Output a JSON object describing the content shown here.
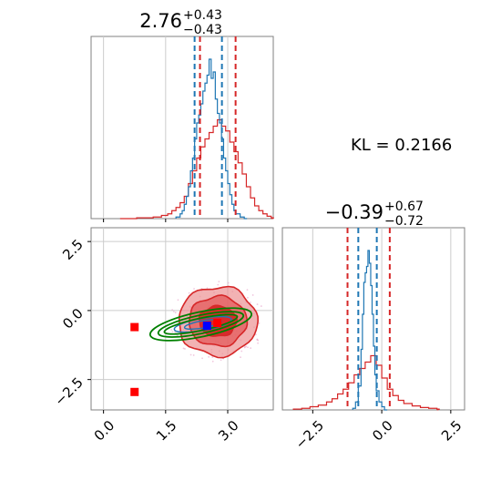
{
  "chart_data": {
    "type": "corner",
    "kl_text": "KL = 0.2166",
    "colors": {
      "posterior_a": "#1f77b4",
      "posterior_b": "#d62728",
      "contour_green": "#008000",
      "marker_red": "#ff0000",
      "marker_blue": "#0000ff",
      "grid": "#cccccc",
      "frame": "#808080"
    },
    "param1": {
      "title_value": "2.76",
      "title_upper": "+0.43",
      "title_lower": "−0.43",
      "range": [
        -0.3,
        4.1
      ],
      "ticks": [
        0.0,
        1.5,
        3.0
      ],
      "tick_labels": [
        "0.0",
        "1.5",
        "3.0"
      ],
      "quantiles_blue": [
        2.2,
        2.86
      ],
      "quantiles_red": [
        2.33,
        3.19
      ],
      "hist_blue": [
        [
          1.75,
          0.01
        ],
        [
          1.85,
          0.03
        ],
        [
          1.9,
          0.05
        ],
        [
          1.95,
          0.09
        ],
        [
          2.0,
          0.14
        ],
        [
          2.05,
          0.2
        ],
        [
          2.1,
          0.3
        ],
        [
          2.15,
          0.38
        ],
        [
          2.2,
          0.5
        ],
        [
          2.25,
          0.6
        ],
        [
          2.3,
          0.65
        ],
        [
          2.35,
          0.72
        ],
        [
          2.4,
          0.8
        ],
        [
          2.45,
          0.85
        ],
        [
          2.5,
          0.9
        ],
        [
          2.55,
          1.0
        ],
        [
          2.6,
          0.88
        ],
        [
          2.65,
          0.92
        ],
        [
          2.7,
          0.75
        ],
        [
          2.75,
          0.66
        ],
        [
          2.8,
          0.6
        ],
        [
          2.85,
          0.5
        ],
        [
          2.9,
          0.38
        ],
        [
          2.95,
          0.3
        ],
        [
          3.0,
          0.22
        ],
        [
          3.05,
          0.15
        ],
        [
          3.1,
          0.09
        ],
        [
          3.15,
          0.05
        ],
        [
          3.2,
          0.03
        ],
        [
          3.3,
          0.01
        ],
        [
          3.4,
          0.0
        ]
      ],
      "hist_red": [
        [
          0.4,
          0.0
        ],
        [
          0.8,
          0.005
        ],
        [
          1.2,
          0.01
        ],
        [
          1.4,
          0.02
        ],
        [
          1.55,
          0.03
        ],
        [
          1.65,
          0.05
        ],
        [
          1.75,
          0.07
        ],
        [
          1.85,
          0.1
        ],
        [
          1.95,
          0.14
        ],
        [
          2.05,
          0.22
        ],
        [
          2.15,
          0.3
        ],
        [
          2.25,
          0.38
        ],
        [
          2.35,
          0.45
        ],
        [
          2.45,
          0.5
        ],
        [
          2.55,
          0.54
        ],
        [
          2.65,
          0.58
        ],
        [
          2.75,
          0.62
        ],
        [
          2.85,
          0.58
        ],
        [
          2.95,
          0.55
        ],
        [
          3.05,
          0.48
        ],
        [
          3.15,
          0.42
        ],
        [
          3.25,
          0.35
        ],
        [
          3.35,
          0.28
        ],
        [
          3.45,
          0.2
        ],
        [
          3.55,
          0.13
        ],
        [
          3.65,
          0.08
        ],
        [
          3.75,
          0.05
        ],
        [
          3.85,
          0.03
        ],
        [
          3.95,
          0.015
        ],
        [
          4.05,
          0.005
        ]
      ]
    },
    "param2": {
      "title_value": "−0.39",
      "title_upper": "+0.67",
      "title_lower": "−0.72",
      "range": [
        -3.6,
        3.0
      ],
      "ticks": [
        -2.5,
        0.0,
        2.5
      ],
      "tick_labels": [
        "−2.5",
        "0.0",
        "2.5"
      ],
      "quantiles_blue": [
        -0.85,
        -0.18
      ],
      "quantiles_red": [
        -1.24,
        0.29
      ],
      "hist_blue": [
        [
          -1.05,
          0.01
        ],
        [
          -0.95,
          0.05
        ],
        [
          -0.85,
          0.15
        ],
        [
          -0.75,
          0.38
        ],
        [
          -0.7,
          0.6
        ],
        [
          -0.65,
          0.8
        ],
        [
          -0.6,
          0.86
        ],
        [
          -0.55,
          0.9
        ],
        [
          -0.5,
          1.0
        ],
        [
          -0.45,
          0.92
        ],
        [
          -0.4,
          0.78
        ],
        [
          -0.35,
          0.6
        ],
        [
          -0.3,
          0.4
        ],
        [
          -0.25,
          0.22
        ],
        [
          -0.2,
          0.12
        ],
        [
          -0.1,
          0.05
        ],
        [
          0.0,
          0.02
        ],
        [
          0.1,
          0.0
        ]
      ],
      "hist_red": [
        [
          -3.2,
          0.005
        ],
        [
          -2.9,
          0.01
        ],
        [
          -2.6,
          0.02
        ],
        [
          -2.3,
          0.03
        ],
        [
          -2.0,
          0.05
        ],
        [
          -1.8,
          0.07
        ],
        [
          -1.6,
          0.1
        ],
        [
          -1.4,
          0.13
        ],
        [
          -1.2,
          0.17
        ],
        [
          -1.0,
          0.22
        ],
        [
          -0.8,
          0.26
        ],
        [
          -0.6,
          0.3
        ],
        [
          -0.4,
          0.34
        ],
        [
          -0.2,
          0.28
        ],
        [
          0.0,
          0.2
        ],
        [
          0.2,
          0.13
        ],
        [
          0.4,
          0.09
        ],
        [
          0.6,
          0.06
        ],
        [
          0.8,
          0.04
        ],
        [
          1.1,
          0.025
        ],
        [
          1.4,
          0.015
        ],
        [
          1.7,
          0.01
        ],
        [
          2.0,
          0.005
        ]
      ]
    },
    "joint": {
      "xrange": [
        -0.3,
        4.1
      ],
      "yrange": [
        -3.6,
        3.0
      ],
      "ticks_x": [
        0.0,
        1.5,
        3.0
      ],
      "ticks_y": [
        -2.5,
        0.0,
        2.5
      ],
      "x_tick_labels": [
        "0.0",
        "1.5",
        "3.0"
      ],
      "y_tick_labels": [
        "−2.5",
        "0.0",
        "2.5"
      ],
      "center": [
        2.76,
        -0.39
      ],
      "red_levels": [
        {
          "rx": 0.45,
          "ry": 0.55,
          "fill": "#d62728",
          "opacity": 0.95
        },
        {
          "rx": 0.7,
          "ry": 0.9,
          "fill": "#e35a5b",
          "opacity": 0.75
        },
        {
          "rx": 0.95,
          "ry": 1.25,
          "fill": "#ec9293",
          "opacity": 0.7
        }
      ],
      "green_ellipses": [
        {
          "cx": 2.35,
          "cy": -0.5,
          "rx": 0.9,
          "ry": 0.22,
          "angle": -12
        },
        {
          "cx": 2.35,
          "cy": -0.5,
          "rx": 1.05,
          "ry": 0.33,
          "angle": -12
        },
        {
          "cx": 2.35,
          "cy": -0.5,
          "rx": 1.25,
          "ry": 0.45,
          "angle": -12
        }
      ],
      "blue_ellipses": [
        {
          "cx": 2.4,
          "cy": -0.5,
          "rx": 0.45,
          "ry": 0.13,
          "angle": -10
        },
        {
          "cx": 2.4,
          "cy": -0.5,
          "rx": 0.7,
          "ry": 0.22,
          "angle": -10
        }
      ],
      "red_markers": [
        [
          0.75,
          -0.6
        ],
        [
          0.75,
          -2.95
        ],
        [
          2.75,
          -0.45
        ]
      ],
      "blue_markers": [
        [
          2.5,
          -0.55
        ]
      ]
    }
  }
}
